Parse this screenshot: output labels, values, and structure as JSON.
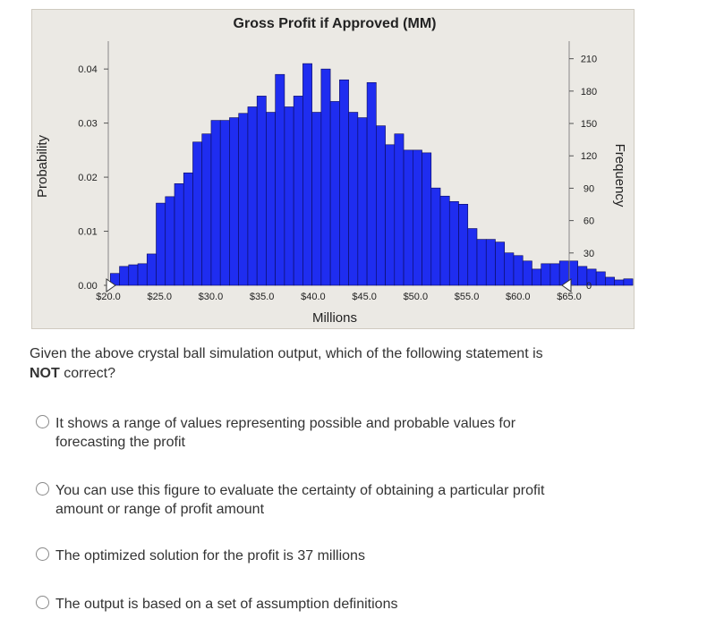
{
  "question": {
    "line1": "Given the above crystal ball simulation output, which of the following statement is",
    "emphasis": "NOT",
    "line2_rest": " correct?"
  },
  "options": [
    {
      "label": "It shows a range of values representing possible and probable values for forecasting the profit",
      "line1": "It shows a range of values representing possible and probable values for",
      "line2": "forecasting the profit"
    },
    {
      "label": "You can use this figure to evaluate the certainty of obtaining a particular profit amount or range of profit amount",
      "line1": "You can use this figure to evaluate the certainty of obtaining a particular profit",
      "line2": "amount or range of profit amount"
    },
    {
      "label": "The optimized solution for the profit is 37 millions",
      "line1": "The optimized solution for the profit is 37 millions",
      "line2": ""
    },
    {
      "label": "The output is based on a set of assumption definitions",
      "line1": "The output is based on a set of assumption definitions",
      "line2": ""
    }
  ],
  "chart_data": {
    "type": "bar",
    "title": "Gross Profit if Approved (MM)",
    "xlabel": "Millions",
    "ylabel": "Probability",
    "y2label": "Frequency",
    "x_tick_labels": [
      "$20.0",
      "$25.0",
      "$30.0",
      "$35.0",
      "$40.0",
      "$45.0",
      "$50.0",
      "$55.0",
      "$60.0",
      "$65.0"
    ],
    "x_tick_values": [
      20,
      25,
      30,
      35,
      40,
      45,
      50,
      55,
      60,
      65
    ],
    "xlim": [
      20,
      65
    ],
    "y_tick_labels": [
      "0.00",
      "0.01",
      "0.02",
      "0.03",
      "0.04"
    ],
    "y_tick_values": [
      0,
      0.01,
      0.02,
      0.03,
      0.04
    ],
    "ylim": [
      0,
      0.0435
    ],
    "y2_tick_labels": [
      "0",
      "30",
      "60",
      "90",
      "120",
      "150",
      "180",
      "210"
    ],
    "y2_tick_values": [
      0,
      30,
      60,
      90,
      120,
      150,
      180,
      210
    ],
    "y2lim": [
      0,
      218
    ],
    "bar_color": "#1f2df0",
    "bar_edge_color": "#0a0a5a",
    "panel_background": "#ebe9e4",
    "grid": false,
    "bin_start": 20.2,
    "bin_width": 0.895,
    "values": [
      0.0022,
      0.0035,
      0.0038,
      0.004,
      0.0058,
      0.0152,
      0.0164,
      0.0188,
      0.0208,
      0.0265,
      0.028,
      0.0305,
      0.0305,
      0.031,
      0.0318,
      0.033,
      0.035,
      0.032,
      0.039,
      0.033,
      0.035,
      0.041,
      0.032,
      0.04,
      0.034,
      0.038,
      0.032,
      0.031,
      0.0375,
      0.0295,
      0.026,
      0.028,
      0.025,
      0.025,
      0.0245,
      0.018,
      0.0165,
      0.0155,
      0.015,
      0.0105,
      0.0085,
      0.0085,
      0.008,
      0.006,
      0.0055,
      0.0045,
      0.003,
      0.004,
      0.004,
      0.0045,
      0.0045,
      0.0035,
      0.003,
      0.0025,
      0.0015,
      0.001,
      0.0012
    ]
  }
}
